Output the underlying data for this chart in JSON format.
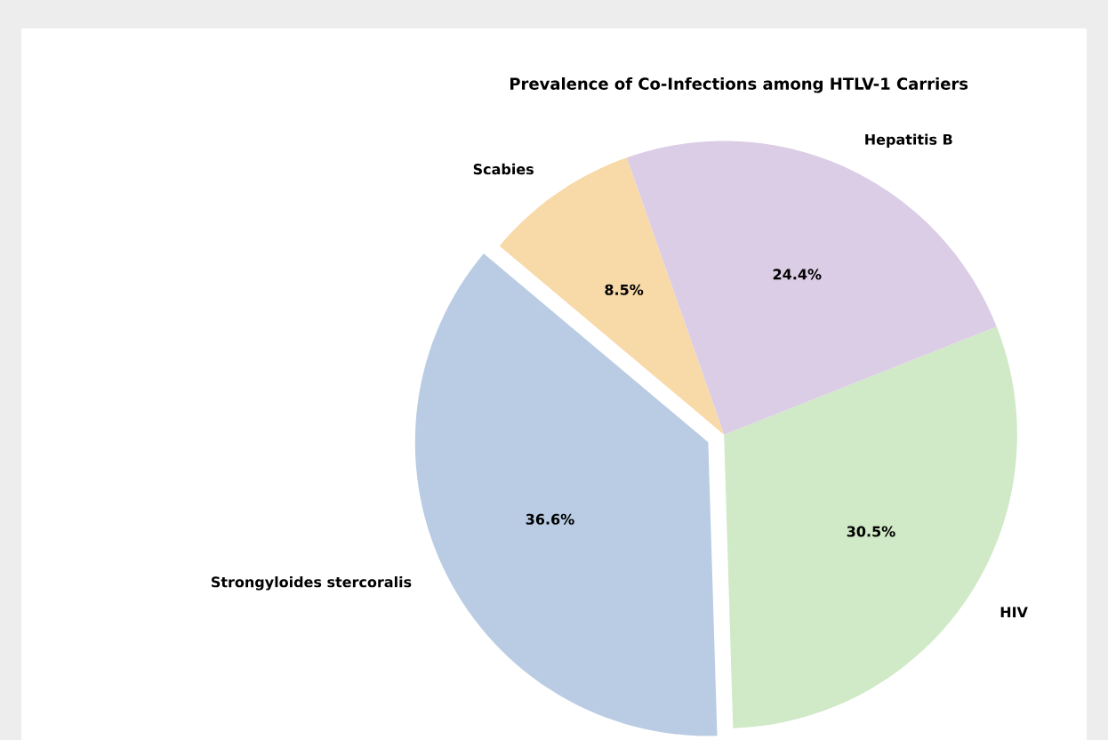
{
  "chart_data": {
    "type": "pie",
    "title": "Prevalence of Co-Infections among HTLV-1 Carriers",
    "categories": [
      "Strongyloides stercoralis",
      "HIV",
      "Hepatitis B",
      "Scabies"
    ],
    "values": [
      36.6,
      30.5,
      24.4,
      8.5
    ],
    "value_labels": [
      "36.6%",
      "30.5%",
      "24.4%",
      "8.5%"
    ],
    "colors": [
      "#b9cce4",
      "#d0e9c6",
      "#dccde6",
      "#f8d9a8"
    ]
  }
}
